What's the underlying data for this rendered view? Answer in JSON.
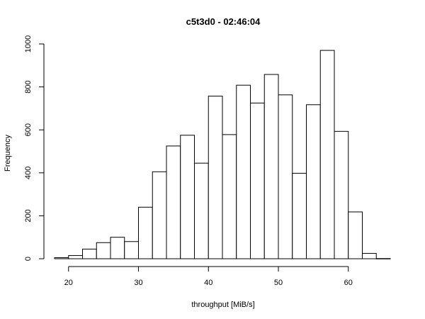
{
  "chart_data": {
    "type": "bar",
    "title": "c5t3d0 - 02:46:04",
    "xlabel": "throughput [MiB/s]",
    "ylabel": "Frequency",
    "xlim": [
      18,
      66
    ],
    "ylim": [
      0,
      1000
    ],
    "x_ticks": [
      20,
      30,
      40,
      50,
      60
    ],
    "y_ticks": [
      0,
      200,
      400,
      600,
      800,
      1000
    ],
    "grid": false,
    "legend": "none",
    "bins": [
      {
        "start": 18,
        "end": 20,
        "value": 5
      },
      {
        "start": 20,
        "end": 22,
        "value": 15
      },
      {
        "start": 22,
        "end": 24,
        "value": 45
      },
      {
        "start": 24,
        "end": 26,
        "value": 75
      },
      {
        "start": 26,
        "end": 28,
        "value": 100
      },
      {
        "start": 28,
        "end": 30,
        "value": 80
      },
      {
        "start": 30,
        "end": 32,
        "value": 240
      },
      {
        "start": 32,
        "end": 34,
        "value": 405
      },
      {
        "start": 34,
        "end": 36,
        "value": 525
      },
      {
        "start": 36,
        "end": 38,
        "value": 575
      },
      {
        "start": 38,
        "end": 40,
        "value": 445
      },
      {
        "start": 40,
        "end": 42,
        "value": 757
      },
      {
        "start": 42,
        "end": 44,
        "value": 578
      },
      {
        "start": 44,
        "end": 46,
        "value": 808
      },
      {
        "start": 46,
        "end": 48,
        "value": 725
      },
      {
        "start": 48,
        "end": 50,
        "value": 858
      },
      {
        "start": 50,
        "end": 52,
        "value": 763
      },
      {
        "start": 52,
        "end": 54,
        "value": 398
      },
      {
        "start": 54,
        "end": 56,
        "value": 717
      },
      {
        "start": 56,
        "end": 58,
        "value": 970
      },
      {
        "start": 58,
        "end": 60,
        "value": 593
      },
      {
        "start": 60,
        "end": 62,
        "value": 218
      },
      {
        "start": 62,
        "end": 64,
        "value": 25
      },
      {
        "start": 64,
        "end": 66,
        "value": 1
      }
    ]
  }
}
